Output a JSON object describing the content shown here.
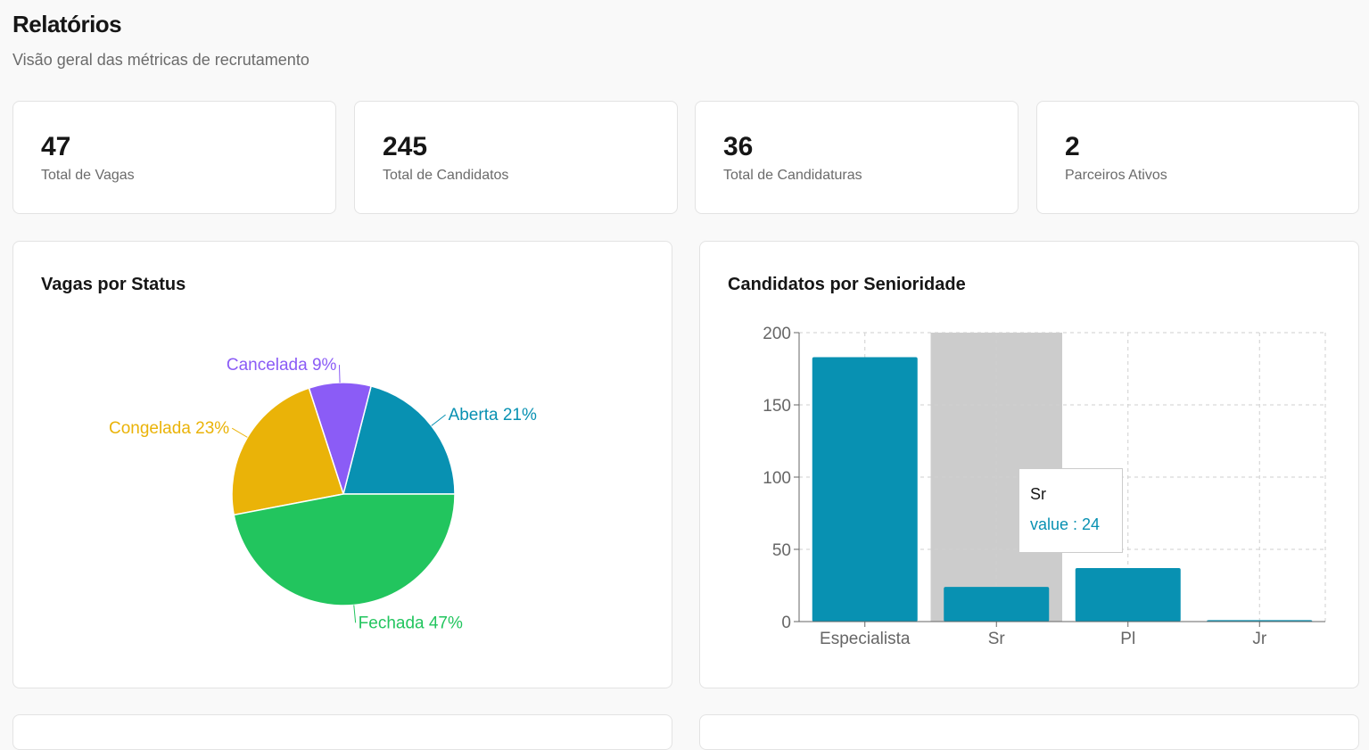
{
  "header": {
    "title": "Relatórios",
    "subtitle": "Visão geral das métricas de recrutamento"
  },
  "stats": [
    {
      "value": "47",
      "label": "Total de Vagas"
    },
    {
      "value": "245",
      "label": "Total de Candidatos"
    },
    {
      "value": "36",
      "label": "Total de Candidaturas"
    },
    {
      "value": "2",
      "label": "Parceiros Ativos"
    }
  ],
  "pie_card": {
    "title": "Vagas por Status"
  },
  "bar_card": {
    "title": "Candidatos por Senioridade"
  },
  "tooltip": {
    "label": "Sr",
    "value_text": "value : 24"
  },
  "colors": {
    "aberta": "#0891b2",
    "cancelada": "#8b5cf6",
    "congelada": "#eab308",
    "fechada": "#22c55e",
    "bar": "#0891b2",
    "highlight": "#cccccc"
  },
  "chart_data": [
    {
      "type": "pie",
      "title": "Vagas por Status",
      "slices": [
        {
          "label": "Aberta",
          "percent": 21,
          "color": "#0891b2"
        },
        {
          "label": "Cancelada",
          "percent": 9,
          "color": "#8b5cf6"
        },
        {
          "label": "Congelada",
          "percent": 23,
          "color": "#eab308"
        },
        {
          "label": "Fechada",
          "percent": 47,
          "color": "#22c55e"
        }
      ]
    },
    {
      "type": "bar",
      "title": "Candidatos por Senioridade",
      "categories": [
        "Especialista",
        "Sr",
        "Pl",
        "Jr"
      ],
      "values": [
        183,
        24,
        37,
        1
      ],
      "ylim": [
        0,
        200
      ],
      "yticks": [
        0,
        50,
        100,
        150,
        200
      ],
      "grid": true,
      "highlighted_category": "Sr"
    }
  ]
}
